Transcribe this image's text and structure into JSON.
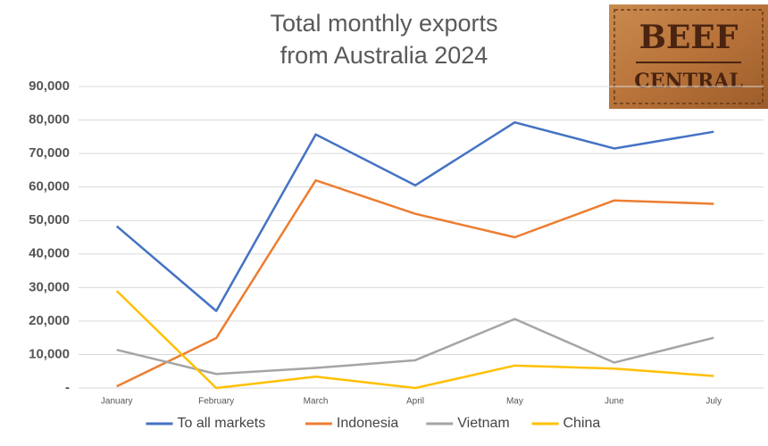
{
  "chart_data": {
    "type": "line",
    "title": [
      "Total monthly exports",
      "from Australia 2024"
    ],
    "logo_text": [
      "BEEF",
      "CENTRAL"
    ],
    "categories": [
      "January",
      "February",
      "March",
      "April",
      "May",
      "June",
      "July"
    ],
    "series": [
      {
        "name": "To all markets",
        "color": "#4472c4",
        "values": [
          48300,
          23000,
          75700,
          60500,
          79300,
          71500,
          76500
        ]
      },
      {
        "name": "Indonesia",
        "color": "#ed7d31",
        "values": [
          500,
          14900,
          62000,
          52000,
          45000,
          56000,
          55000
        ]
      },
      {
        "name": "Vietnam",
        "color": "#a5a5a5",
        "values": [
          11400,
          4200,
          6000,
          8300,
          20600,
          7600,
          15000
        ]
      },
      {
        "name": "China",
        "color": "#ffc000",
        "values": [
          29000,
          0,
          3400,
          0,
          6700,
          5800,
          3600
        ]
      }
    ],
    "ylim": [
      0,
      90000
    ],
    "yticks": [
      {
        "value": 0,
        "label": "-"
      },
      {
        "value": 10000,
        "label": "10,000"
      },
      {
        "value": 20000,
        "label": "20,000"
      },
      {
        "value": 30000,
        "label": "30,000"
      },
      {
        "value": 40000,
        "label": "40,000"
      },
      {
        "value": 50000,
        "label": "50,000"
      },
      {
        "value": 60000,
        "label": "60,000"
      },
      {
        "value": 70000,
        "label": "70,000"
      },
      {
        "value": 80000,
        "label": "80,000"
      },
      {
        "value": 90000,
        "label": "90,000"
      }
    ],
    "grid": true,
    "legend": "bottom"
  }
}
